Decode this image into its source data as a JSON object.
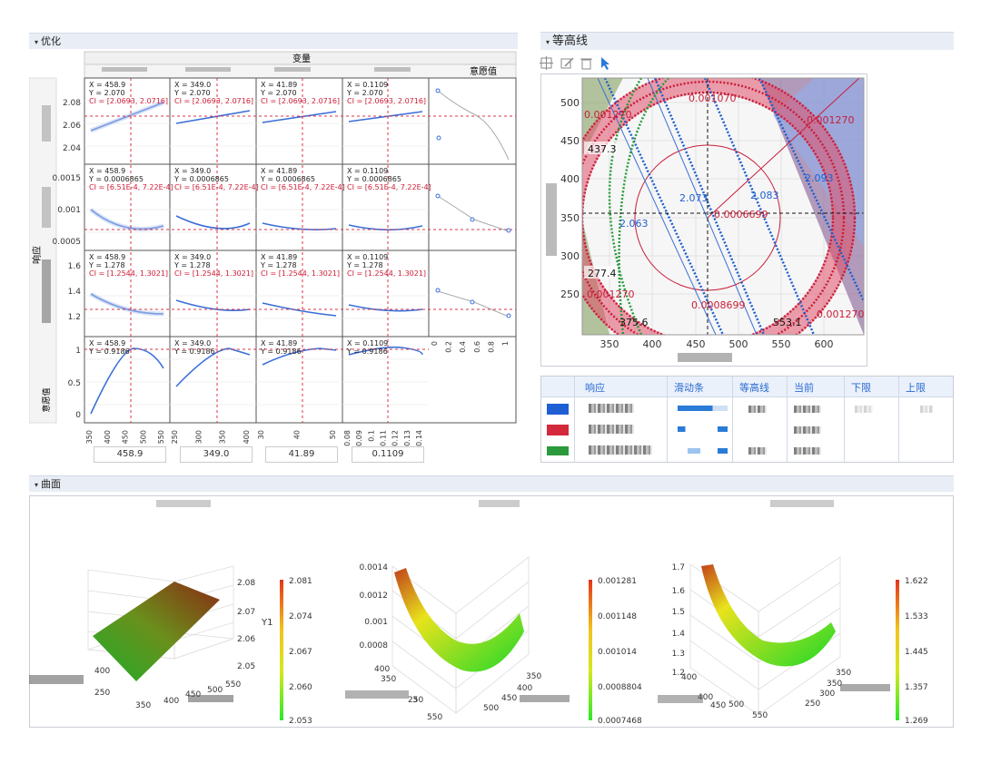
{
  "opt": {
    "title": "优化",
    "var_header": "变量",
    "desirability_header": "意愿值",
    "response_axis": "响应",
    "desir_row_label": "意愿值",
    "cells": [
      [
        "X = 458.9",
        "Y = 2.070",
        "CI = [2.0693, 2.0716]"
      ],
      [
        "X = 349.0",
        "Y = 2.070",
        "CI = [2.0693, 2.0716]"
      ],
      [
        "X = 41.89",
        "Y = 2.070",
        "CI = [2.0693, 2.0716]"
      ],
      [
        "X = 0.1109",
        "Y = 2.070",
        "CI = [2.0693, 2.0716]"
      ],
      [
        "X = 458.9",
        "Y = 0.0006865",
        "CI = [6.51E-4, 7.22E-4]"
      ],
      [
        "X = 349.0",
        "Y = 0.0006865",
        "CI = [6.51E-4, 7.22E-4]"
      ],
      [
        "X = 41.89",
        "Y = 0.0006865",
        "CI = [6.51E-4, 7.22E-4]"
      ],
      [
        "X = 0.1109",
        "Y = 0.0006865",
        "CI = [6.51E-4, 7.22E-4]"
      ],
      [
        "X = 458.9",
        "Y = 1.278",
        "CI = [1.2544, 1.3021]"
      ],
      [
        "X = 349.0",
        "Y = 1.278",
        "CI = [1.2544, 1.3021]"
      ],
      [
        "X = 41.89",
        "Y = 1.278",
        "CI = [1.2544, 1.3021]"
      ],
      [
        "X = 0.1109",
        "Y = 1.278",
        "CI = [1.2544, 1.3021]"
      ],
      [
        "X = 458.9",
        "Y = 0.9186",
        ""
      ],
      [
        "X = 349.0",
        "Y = 0.9186",
        ""
      ],
      [
        "X = 41.89",
        "Y = 0.9186",
        ""
      ],
      [
        "X = 0.1109",
        "Y = 0.9186",
        ""
      ]
    ],
    "row_ticks": [
      [
        "2.08",
        "2.06",
        "2.04"
      ],
      [
        "0.0015",
        "0.001",
        "0.0005"
      ],
      [
        "1.6",
        "1.4",
        "1.2"
      ],
      [
        "1",
        "0.5",
        "0"
      ]
    ],
    "col_ticks": [
      [
        "350",
        "400",
        "450",
        "500",
        "550"
      ],
      [
        "250",
        "300",
        "350",
        "400"
      ],
      [
        "30",
        "40",
        "50"
      ],
      [
        "0.08",
        "0.09",
        "0.1",
        "0.11",
        "0.12",
        "0.13",
        "0.14"
      ]
    ],
    "desir_ticks": [
      "0",
      "0.2",
      "0.4",
      "0.6",
      "0.8",
      "1"
    ],
    "values": [
      "458.9",
      "349.0",
      "41.89",
      "0.1109"
    ]
  },
  "contour": {
    "title": "等高线",
    "y_ticks": [
      "500",
      "450",
      "400",
      "350",
      "300",
      "250"
    ],
    "x_ticks": [
      "350",
      "400",
      "450",
      "500",
      "550",
      "600"
    ],
    "labels": {
      "l1": "0.001070",
      "l2": "0.001270",
      "l3": "0.001270",
      "l4": "437.3",
      "l5": "2.073",
      "l6": "2.083",
      "l7": "2.093",
      "l8": "2.063",
      "l9": "0.0006699",
      "l10": "277.4",
      "l11": "0.001270",
      "l12": "0.0008699",
      "l13": "375.6",
      "l14": "553.1",
      "l15": "0.001270"
    }
  },
  "table": {
    "headers": [
      "响应",
      "滑动条",
      "等高线",
      "当前",
      "下限",
      "上限"
    ],
    "colors": [
      "#1f5fd6",
      "#d3293a",
      "#2a9a3a"
    ]
  },
  "surface": {
    "title": "曲面",
    "s1": {
      "z_ticks": [
        "2.08",
        "2.07",
        "2.06",
        "2.05"
      ],
      "zlabel": "Y1",
      "x_ticks": [
        "350",
        "400",
        "450"
      ],
      "y_ticks": [
        "400",
        "250"
      ],
      "y2_ticks": [
        "500",
        "550"
      ],
      "cbar": [
        "2.081",
        "2.074",
        "2.067",
        "2.060",
        "2.053"
      ]
    },
    "s2": {
      "z_ticks": [
        "0.0014",
        "0.0012",
        "0.001",
        "0.0008"
      ],
      "x_ticks": [
        "350",
        "400",
        "450",
        "500",
        "550"
      ],
      "y_ticks": [
        "400",
        "350",
        "250"
      ],
      "y_extra": "3",
      "cbar": [
        "0.001281",
        "0.001148",
        "0.001014",
        "0.0008804",
        "0.0007468"
      ]
    },
    "s3": {
      "z_ticks": [
        "1.7",
        "1.6",
        "1.5",
        "1.4",
        "1.3",
        "1.2"
      ],
      "x_ticks": [
        "350",
        "400",
        "450",
        "500",
        "550"
      ],
      "y_ticks": [
        "400",
        "350",
        "300",
        "250"
      ],
      "cbar": [
        "1.622",
        "1.533",
        "1.445",
        "1.357",
        "1.269"
      ]
    }
  }
}
